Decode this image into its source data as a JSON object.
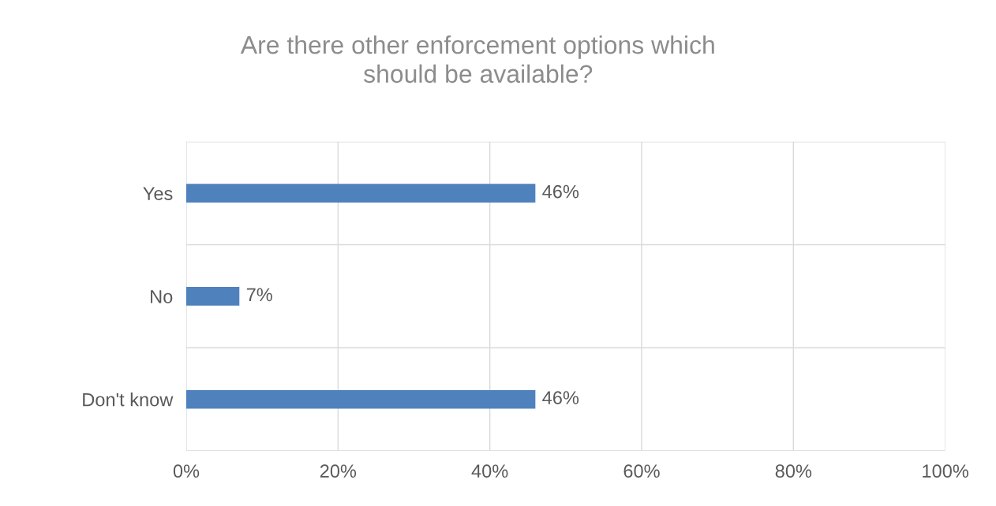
{
  "chart_data": {
    "type": "bar",
    "orientation": "horizontal",
    "title": "Are there other enforcement options which\nshould be available?",
    "categories": [
      "Yes",
      "No",
      "Don't know"
    ],
    "values": [
      46,
      7,
      46
    ],
    "value_labels": [
      "46%",
      "7%",
      "46%"
    ],
    "color": "#4f81bd",
    "xlim": [
      0,
      100
    ],
    "xticks": [
      {
        "value": 0,
        "label": "0%"
      },
      {
        "value": 20,
        "label": "20%"
      },
      {
        "value": 40,
        "label": "40%"
      },
      {
        "value": 60,
        "label": "60%"
      },
      {
        "value": 80,
        "label": "80%"
      },
      {
        "value": 100,
        "label": "100%"
      }
    ],
    "grid": true,
    "legend": false
  }
}
